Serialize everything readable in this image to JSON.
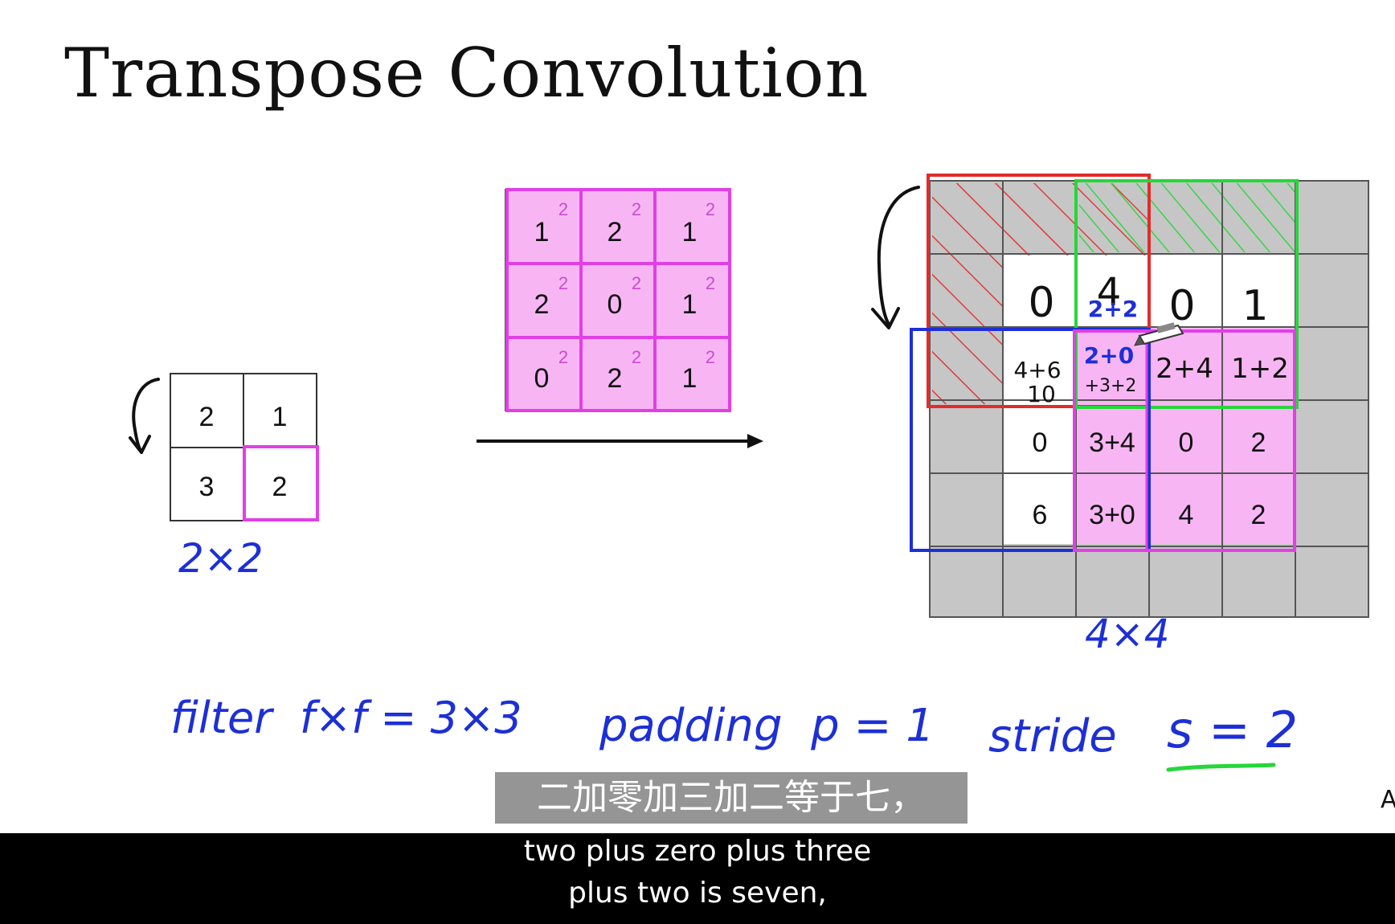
{
  "slide": {
    "title": "Transpose Convolution"
  },
  "input_matrix": {
    "cells": [
      [
        "2",
        "1"
      ],
      [
        "3",
        "2"
      ]
    ],
    "size_label": "2×2"
  },
  "filter_matrix": {
    "cells": [
      [
        "1",
        "2",
        "1"
      ],
      [
        "2",
        "0",
        "1"
      ],
      [
        "0",
        "2",
        "1"
      ]
    ],
    "superscript": "2"
  },
  "output_matrix": {
    "row1": [
      "0",
      "4",
      "0",
      "1"
    ],
    "row1_addition": "2+2",
    "row2": [
      "4+6",
      "2+0",
      "2+4",
      "1+2"
    ],
    "row2_addition_extra": "+3+2",
    "row2_result_note": "10",
    "row3": [
      "0",
      "3+4",
      "0",
      "2"
    ],
    "row4": [
      "6",
      "3+0",
      "4",
      "2"
    ],
    "size_label": "4×4"
  },
  "annotations": {
    "filter": "filter  f×f = 3×3",
    "padding": "padding  p = 1",
    "stride_prefix": "stride",
    "stride_value": "s = 2"
  },
  "subtitles": {
    "chinese": "二加零加三加二等于七，",
    "english_line1": "two plus zero plus three",
    "english_line2": "plus two is seven,",
    "edge_glyph": "A"
  },
  "colors": {
    "magenta": "#e13fe6",
    "magenta_fill": "#f7b6f3",
    "gray_fill": "#c6c6c6",
    "ink_blue": "#1d2fd6",
    "ink_red": "#e22b2b",
    "ink_green": "#27d63a",
    "black": "#111111"
  }
}
